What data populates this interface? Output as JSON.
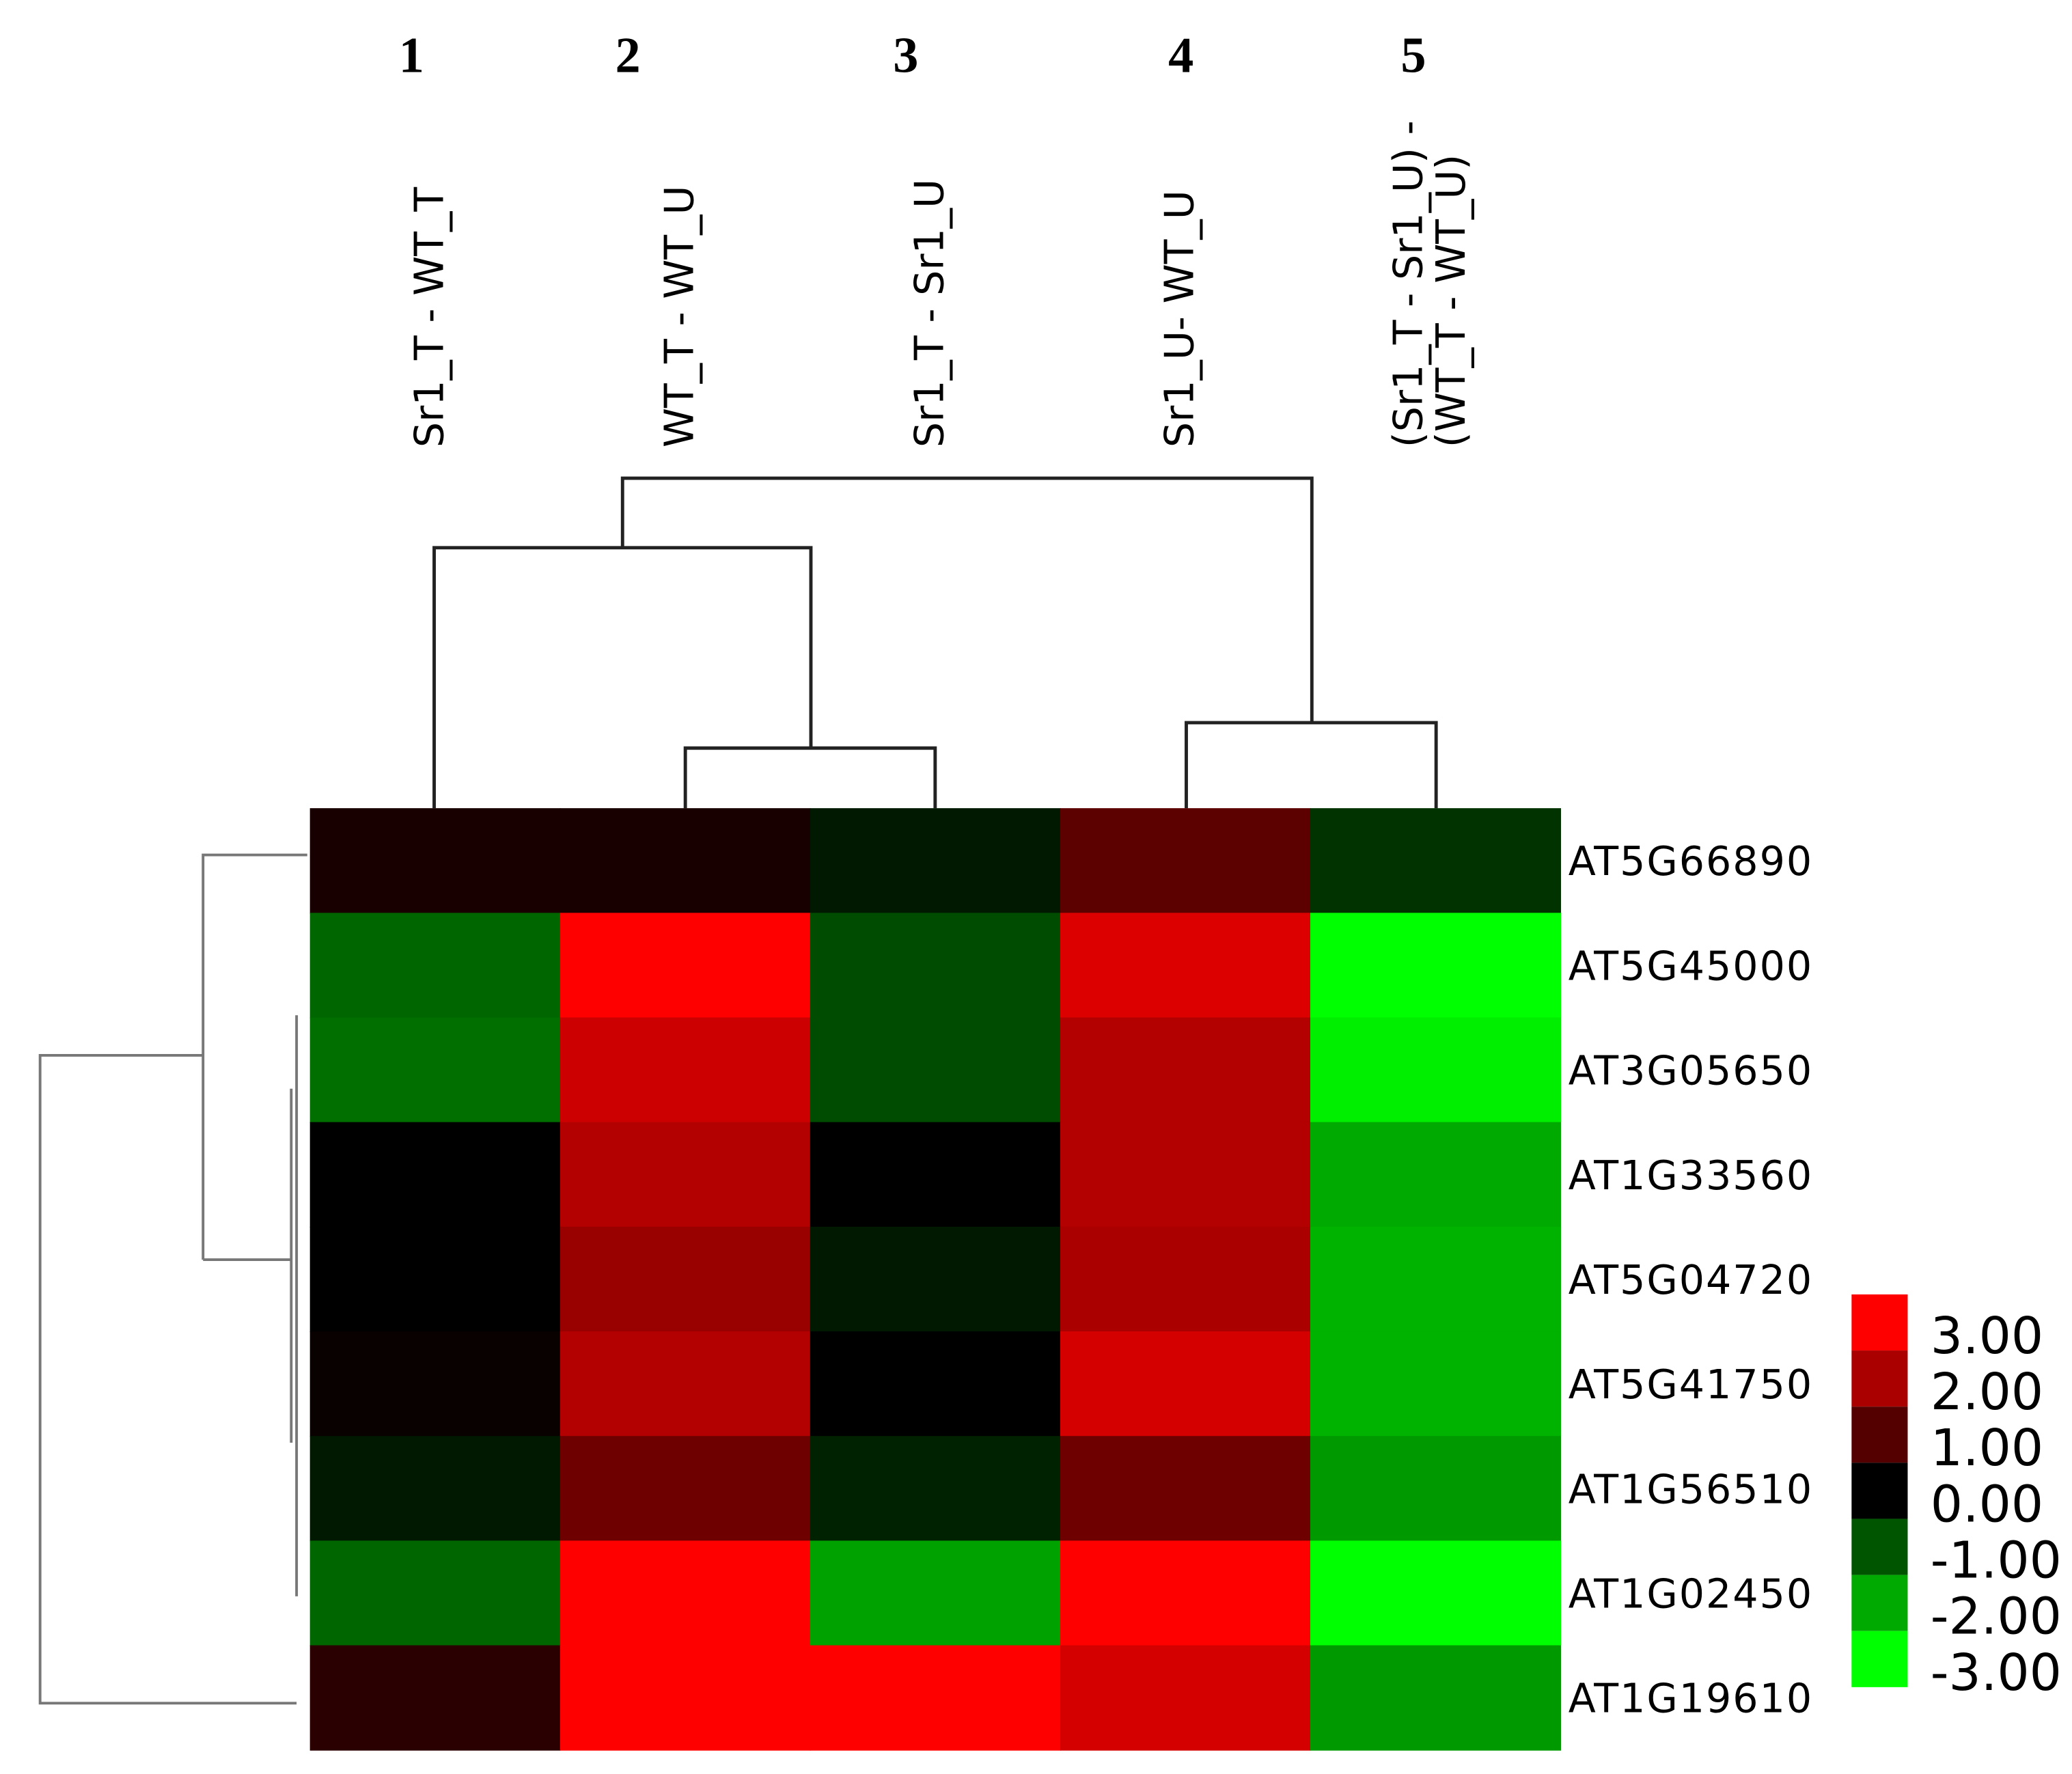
{
  "chart_data": {
    "type": "heatmap",
    "column_numbers": [
      "1",
      "2",
      "3",
      "4",
      "5"
    ],
    "column_labels": [
      [
        "Sr1_T - WT_T"
      ],
      [
        "WT_T - WT_U"
      ],
      [
        "Sr1_T - Sr1_U"
      ],
      [
        "Sr1_U- WT_U"
      ],
      [
        "(Sr1_T - Sr1_U) -",
        "(WT_T - WT_U)"
      ]
    ],
    "rows": [
      "AT5G66890",
      "AT5G45000",
      "AT3G05650",
      "AT1G33560",
      "AT5G04720",
      "AT5G41750",
      "AT1G56510",
      "AT1G02450",
      "AT1G19610"
    ],
    "values": [
      [
        0.3,
        0.3,
        -0.3,
        1.1,
        -0.6
      ],
      [
        -1.2,
        3.0,
        -0.9,
        2.6,
        -3.0
      ],
      [
        -1.3,
        2.4,
        -0.9,
        2.1,
        -2.8
      ],
      [
        0.0,
        2.1,
        0.0,
        2.1,
        -2.0
      ],
      [
        0.0,
        1.8,
        -0.3,
        2.0,
        -2.1
      ],
      [
        0.1,
        2.1,
        0.0,
        2.5,
        -2.1
      ],
      [
        -0.3,
        1.3,
        -0.4,
        1.3,
        -1.8
      ],
      [
        -1.2,
        3.0,
        -1.9,
        3.0,
        -3.0
      ],
      [
        0.5,
        3.0,
        3.0,
        2.5,
        -1.8
      ]
    ],
    "colors": {
      "low": "#00ff00",
      "mid": "#000000",
      "high": "#ff0000"
    },
    "clim": [
      -3,
      3
    ],
    "colorbar_ticks": [
      {
        "value": 3,
        "label": "3.00"
      },
      {
        "value": 2,
        "label": "2.00"
      },
      {
        "value": 1,
        "label": "1.00"
      },
      {
        "value": 0,
        "label": "0.00"
      },
      {
        "value": -1,
        "label": "-1.00"
      },
      {
        "value": -2,
        "label": "-2.00"
      },
      {
        "value": -3,
        "label": "-3.00"
      }
    ]
  }
}
